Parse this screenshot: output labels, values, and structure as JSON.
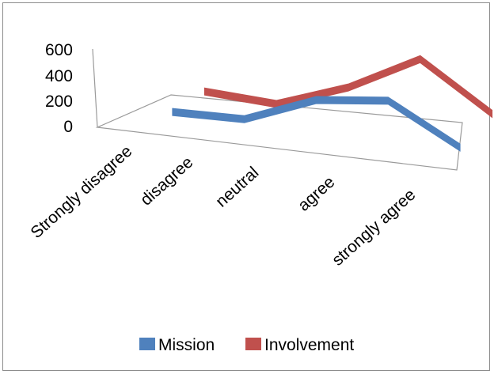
{
  "chart_data": {
    "type": "line",
    "style": "3d-ribbon",
    "categories": [
      "Strongly disagree",
      "disagree",
      "neutral",
      "agree",
      "strongly agree"
    ],
    "series": [
      {
        "name": "Mission",
        "color": "#4f81bd",
        "values": [
          20,
          30,
          240,
          300,
          10
        ]
      },
      {
        "name": "Involvement",
        "color": "#c0504d",
        "values": [
          70,
          40,
          230,
          510,
          160
        ]
      }
    ],
    "y_ticks": [
      "0",
      "200",
      "400",
      "600"
    ],
    "ylim": [
      0,
      600
    ],
    "legend_position": "bottom",
    "grid": false
  }
}
